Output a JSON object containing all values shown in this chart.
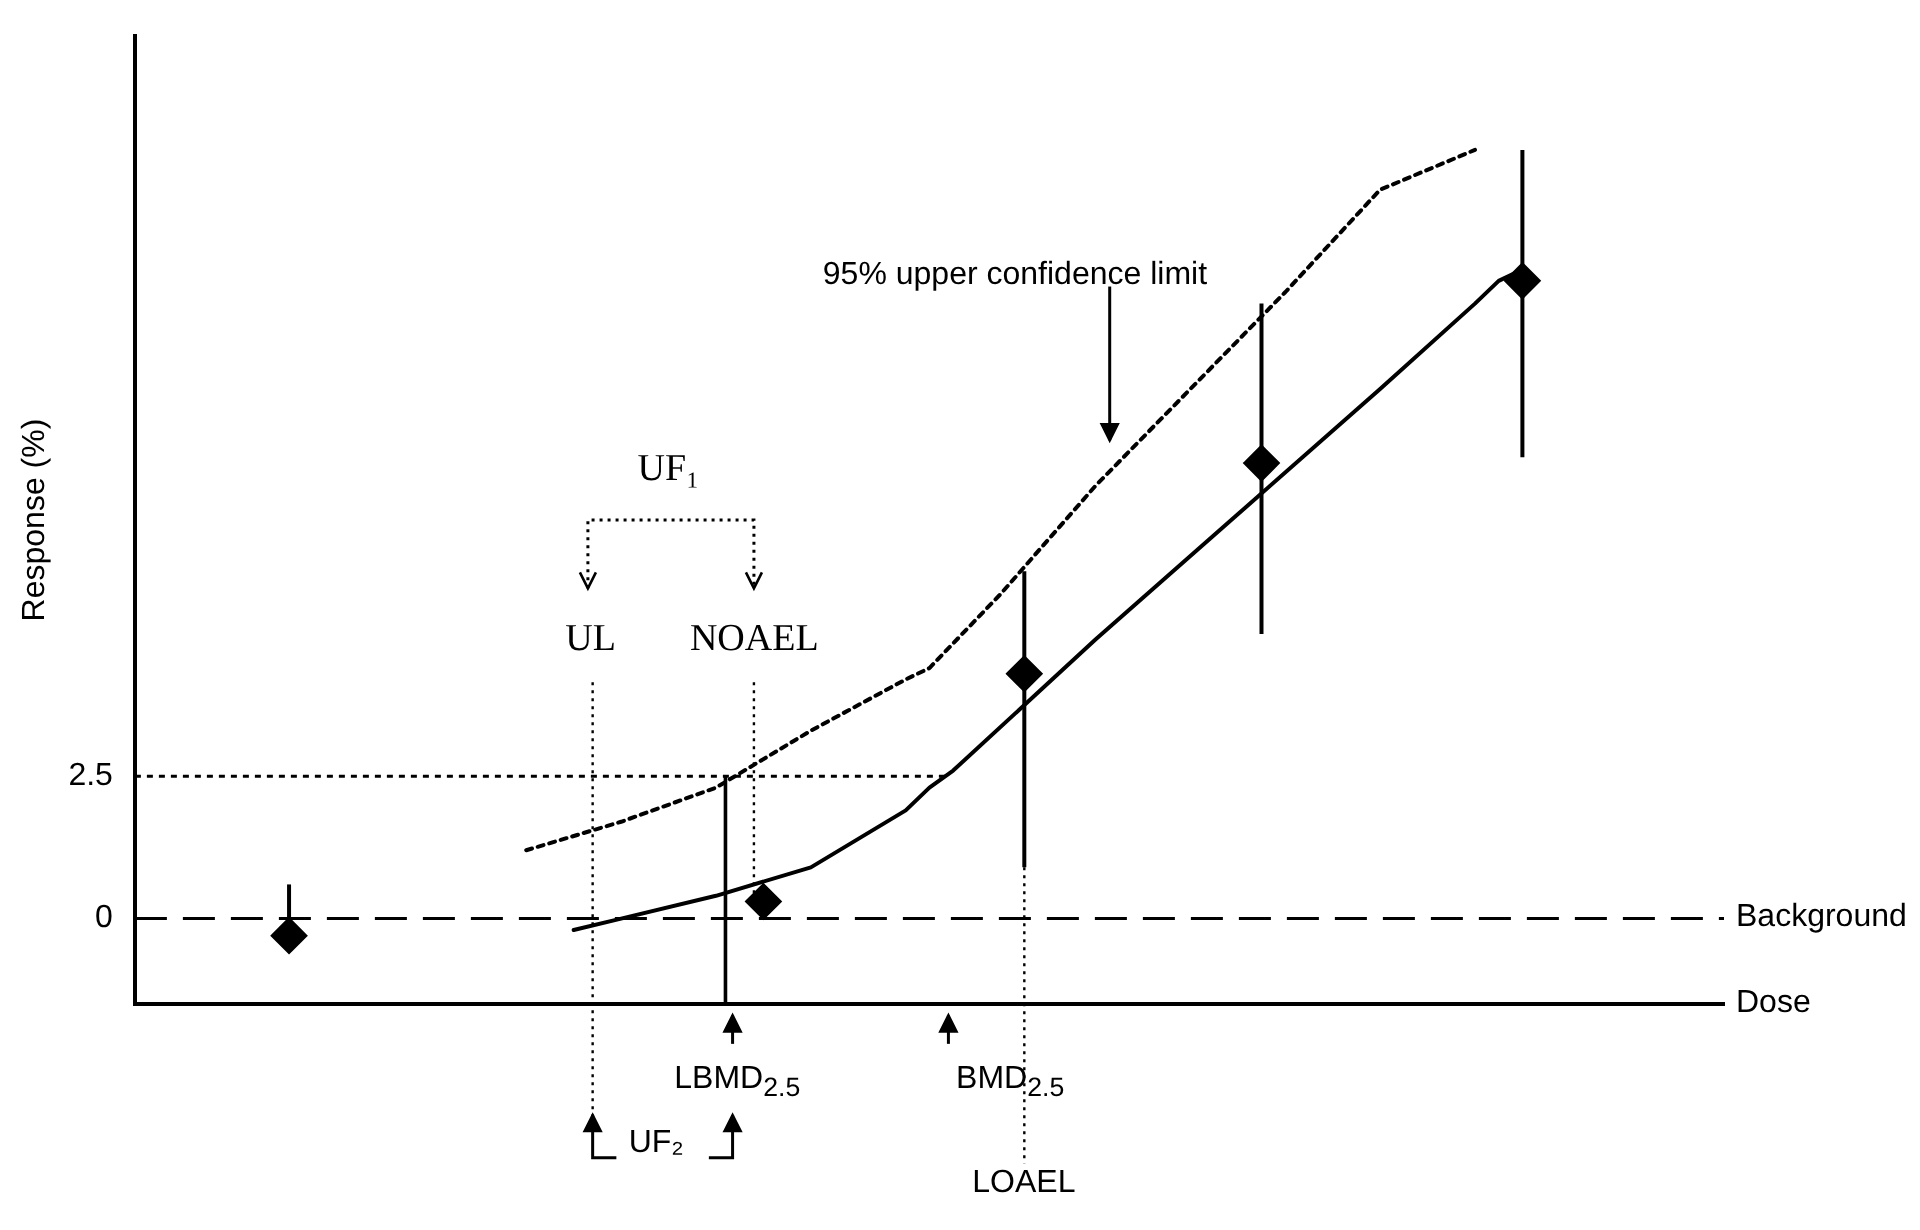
{
  "chart_data": {
    "type": "line",
    "ylabel": "Response (%)",
    "xlabel": "Dose",
    "categories": [
      null,
      null,
      null,
      null,
      null,
      null,
      null,
      null,
      null,
      null,
      null,
      null,
      null,
      null,
      null,
      null,
      null,
      null,
      null,
      null,
      null,
      null,
      null,
      null,
      null,
      null,
      null,
      null,
      null,
      null,
      null,
      null,
      null,
      null,
      null,
      null,
      null,
      null,
      null,
      null,
      null,
      null,
      null,
      null,
      null,
      null,
      null,
      null,
      null,
      null,
      null,
      null,
      null,
      null,
      null,
      null,
      null,
      null,
      null,
      null,
      null,
      null,
      null,
      null,
      null,
      null,
      null
    ],
    "ylim": [
      -1.5,
      15.5
    ],
    "yticks": [
      0,
      2.5
    ],
    "grid": false,
    "legend": false,
    "tick_labels": "y",
    "series": [
      {
        "type": "scatter",
        "color": "#000000",
        "marker": "diamond",
        "values": [
          null,
          null,
          null,
          null,
          null,
          null,
          -0.3,
          null,
          null,
          null,
          null,
          null,
          null,
          null,
          null,
          null,
          null,
          null,
          null,
          null,
          null,
          null,
          null,
          null,
          null,
          null,
          0.3,
          null,
          null,
          null,
          null,
          null,
          null,
          null,
          null,
          null,
          null,
          4.3,
          null,
          null,
          null,
          null,
          null,
          null,
          null,
          null,
          null,
          8.0,
          null,
          null,
          null,
          null,
          null,
          null,
          null,
          null,
          null,
          null,
          11.2,
          null,
          null,
          null,
          null,
          null,
          null,
          null,
          null
        ],
        "errors": [
          null,
          null,
          null,
          null,
          null,
          null,
          [
            -0.3,
            0.6
          ],
          null,
          null,
          null,
          null,
          null,
          null,
          null,
          null,
          null,
          null,
          null,
          null,
          null,
          null,
          null,
          null,
          null,
          null,
          null,
          null,
          null,
          null,
          null,
          null,
          null,
          null,
          null,
          null,
          null,
          null,
          [
            0.9,
            6.1
          ],
          null,
          null,
          null,
          null,
          null,
          null,
          null,
          null,
          null,
          [
            5.0,
            10.8
          ],
          null,
          null,
          null,
          null,
          null,
          null,
          null,
          null,
          null,
          null,
          [
            8.1,
            13.5
          ],
          null,
          null,
          null,
          null,
          null,
          null,
          null,
          null
        ]
      },
      {
        "type": "line",
        "color": "#000000",
        "marker": "none",
        "line_style": "solid",
        "values": [
          null,
          null,
          null,
          null,
          null,
          null,
          null,
          null,
          null,
          null,
          null,
          null,
          null,
          null,
          null,
          null,
          null,
          null,
          -0.2,
          null,
          0,
          null,
          null,
          null,
          0.4,
          null,
          null,
          null,
          0.9,
          null,
          null,
          null,
          1.9,
          2.3,
          2.6,
          null,
          null,
          null,
          null,
          null,
          4.9,
          null,
          null,
          null,
          null,
          null,
          7.1,
          null,
          null,
          null,
          null,
          null,
          9.3,
          null,
          null,
          null,
          10.8,
          11.2,
          11.4,
          null,
          null,
          null,
          null,
          null,
          null,
          null,
          null
        ]
      },
      {
        "type": "line",
        "color": "#000000",
        "marker": "none",
        "line_style": "dotted",
        "values": [
          null,
          null,
          null,
          null,
          null,
          null,
          null,
          null,
          null,
          null,
          null,
          null,
          null,
          null,
          null,
          null,
          1.2,
          null,
          null,
          null,
          1.7,
          null,
          null,
          null,
          2.3,
          null,
          null,
          null,
          3.3,
          null,
          null,
          null,
          4.2,
          4.4,
          null,
          null,
          5.7,
          null,
          null,
          null,
          7.6,
          null,
          null,
          null,
          9.3,
          null,
          null,
          null,
          11.0,
          null,
          null,
          null,
          12.8,
          null,
          null,
          null,
          13.5,
          null,
          null,
          null,
          null,
          null,
          null,
          null,
          null,
          null,
          null
        ]
      }
    ],
    "ref_lines": [
      {
        "axis": "y",
        "value": 0,
        "label": "Background",
        "line_style": "dashed",
        "color": "#000000"
      },
      {
        "axis": "y",
        "value": 2.5,
        "line_style": "dotted",
        "color": "#000000"
      }
    ],
    "annotations": [
      "95% upper confidence limit",
      "UF₁",
      "UL",
      "NOAEL",
      "LBMD$_{2.5}$",
      "BMD$_{2.5}$",
      "UF₂",
      "LOAEL"
    ]
  }
}
